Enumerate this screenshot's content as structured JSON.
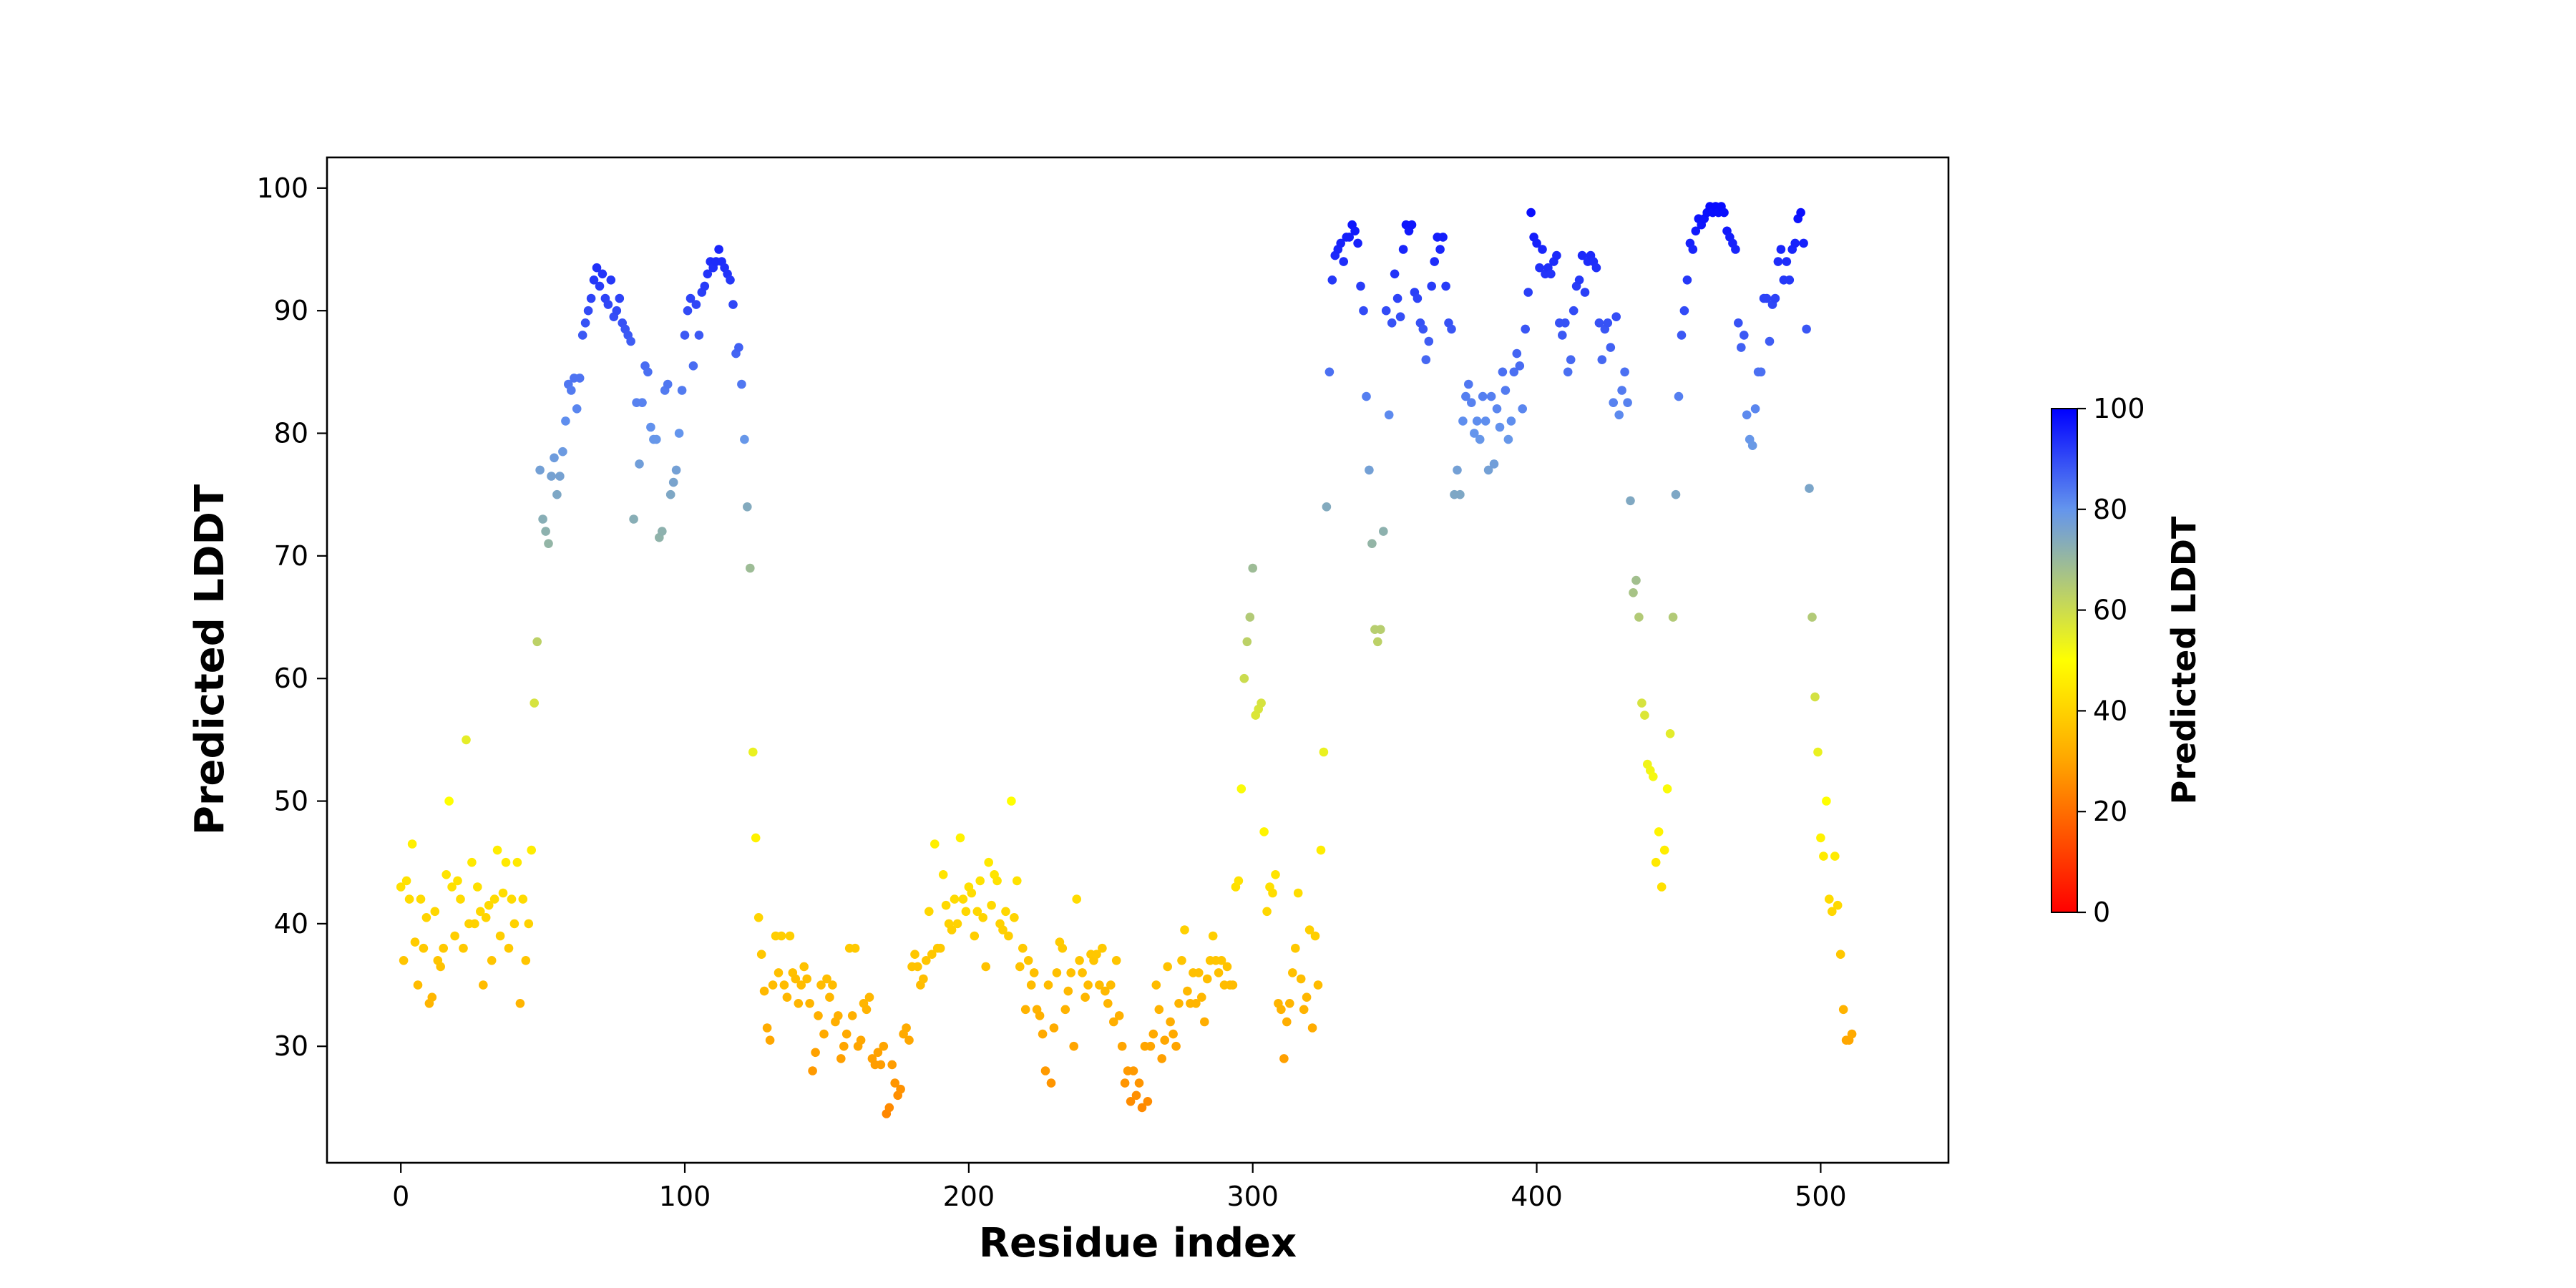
{
  "chart_data": {
    "type": "scatter",
    "xlabel": "Residue index",
    "ylabel": "Predicted LDDT",
    "x_ticks": [
      0,
      100,
      200,
      300,
      400,
      500
    ],
    "y_ticks": [
      30,
      40,
      50,
      60,
      70,
      80,
      90,
      100
    ],
    "xlim": [
      -26,
      545
    ],
    "ylim": [
      20.5,
      102.5
    ],
    "grid": false,
    "colorbar": {
      "label": "Predicted LDDT",
      "range": [
        0,
        100
      ],
      "ticks": [
        0,
        20,
        40,
        60,
        80,
        100
      ],
      "colors": [
        "#ff0000",
        "#ffa500",
        "#ffff00",
        "#6495ed",
        "#0000ff"
      ],
      "stops": [
        0,
        0.3,
        0.5,
        0.8,
        1.0
      ]
    },
    "y": [
      43,
      37,
      43.5,
      42,
      46.5,
      38.5,
      35,
      42,
      38,
      40.5,
      33.5,
      34,
      41,
      37,
      36.5,
      38,
      44,
      50,
      43,
      39,
      43.5,
      42,
      38,
      55,
      40,
      45,
      40,
      43,
      41,
      35,
      40.5,
      41.5,
      37,
      42,
      46,
      39,
      42.5,
      45,
      38,
      42,
      40,
      45,
      33.5,
      42,
      37,
      40,
      46,
      58,
      63,
      77,
      73,
      72,
      71,
      76.5,
      78,
      75,
      76.5,
      78.5,
      81,
      84,
      83.5,
      84.5,
      82,
      84.5,
      88,
      89,
      90,
      91,
      92.5,
      93.5,
      92,
      93,
      91,
      90.5,
      92.5,
      89.5,
      90,
      91,
      89,
      88.5,
      88,
      87.5,
      73,
      82.5,
      77.5,
      82.5,
      85.5,
      85,
      80.5,
      79.5,
      79.5,
      71.5,
      72,
      83.5,
      84,
      75,
      76,
      77,
      80,
      83.5,
      88,
      90,
      91,
      85.5,
      90.5,
      88,
      91.5,
      92,
      93,
      94,
      93.5,
      94,
      95,
      94,
      93.5,
      93,
      92.5,
      90.5,
      86.5,
      87,
      84,
      79.5,
      74,
      69,
      54,
      47,
      40.5,
      37.5,
      34.5,
      31.5,
      30.5,
      35,
      39,
      36,
      39,
      35,
      34,
      39,
      36,
      35.5,
      33.5,
      35,
      36.5,
      35.5,
      33.5,
      28,
      29.5,
      32.5,
      35,
      31,
      35.5,
      34,
      35,
      32,
      32.5,
      29,
      30,
      31,
      38,
      32.5,
      38,
      30,
      30.5,
      33.5,
      33,
      34,
      29,
      28.5,
      29.5,
      28.5,
      30,
      24.5,
      25,
      28.5,
      27,
      26,
      26.5,
      31,
      31.5,
      30.5,
      36.5,
      37.5,
      36.5,
      35,
      35.5,
      37,
      41,
      37.5,
      46.5,
      38,
      38,
      44,
      41.5,
      40,
      39.5,
      42,
      40,
      47,
      42,
      41,
      43,
      42.5,
      39,
      41,
      43.5,
      40.5,
      36.5,
      45,
      41.5,
      44,
      43.5,
      40,
      39.5,
      41,
      39,
      50,
      40.5,
      43.5,
      36.5,
      38,
      33,
      37,
      35,
      36,
      33,
      32.5,
      31,
      28,
      35,
      27,
      31.5,
      36,
      38.5,
      38,
      33,
      34.5,
      36,
      30,
      42,
      37,
      36,
      34,
      35,
      37.5,
      37,
      37.5,
      35,
      38,
      34.5,
      33.5,
      35,
      32,
      37,
      32.5,
      30,
      27,
      28,
      25.5,
      28,
      26,
      27,
      25,
      30,
      25.5,
      30,
      31,
      35,
      33,
      29,
      30.5,
      36.5,
      32,
      31,
      30,
      33.5,
      37,
      39.5,
      34.5,
      33.5,
      36,
      33.5,
      36,
      34,
      32,
      35.5,
      37,
      39,
      37,
      36,
      37,
      35,
      36.5,
      35,
      35,
      43,
      43.5,
      51,
      60,
      63,
      65,
      69,
      57,
      57.5,
      58,
      47.5,
      41,
      43,
      42.5,
      44,
      33.5,
      33,
      29,
      32,
      33.5,
      36,
      38,
      42.5,
      35.5,
      33,
      34,
      39.5,
      31.5,
      39,
      35,
      46,
      54,
      74,
      85,
      92.5,
      94.5,
      95,
      95.5,
      94,
      96,
      96,
      97,
      96.5,
      95.5,
      92,
      90,
      83,
      77,
      71,
      64,
      63,
      64,
      72,
      90,
      81.5,
      89,
      93,
      91,
      89.5,
      95,
      97,
      96.5,
      97,
      91.5,
      91,
      89,
      88.5,
      86,
      87.5,
      92,
      94,
      96,
      95,
      96,
      92,
      89,
      88.5,
      75,
      77,
      75,
      81,
      83,
      84,
      82.5,
      80,
      81,
      79.5,
      83,
      81,
      77,
      83,
      77.5,
      82,
      80.5,
      85,
      83.5,
      79.5,
      81,
      85,
      86.5,
      85.5,
      82,
      88.5,
      91.5,
      98,
      96,
      95.5,
      93.5,
      95,
      93,
      93.5,
      93,
      94,
      94.5,
      89,
      88,
      89,
      85,
      86,
      90,
      92,
      92.5,
      94.5,
      91.5,
      94,
      94.5,
      94,
      93.5,
      89,
      86,
      88.5,
      89,
      87,
      82.5,
      89.5,
      81.5,
      83.5,
      85,
      82.5,
      74.5,
      67,
      68,
      65,
      58,
      57,
      53,
      52.5,
      52,
      45,
      47.5,
      43,
      46,
      51,
      55.5,
      65,
      75,
      83,
      88,
      90,
      92.5,
      95.5,
      95,
      96.5,
      97.5,
      97,
      97.5,
      98,
      98.5,
      98,
      98.5,
      98,
      98.5,
      98,
      96.5,
      96,
      95.5,
      95,
      89,
      87,
      88,
      81.5,
      79.5,
      79,
      82,
      85,
      85,
      91,
      91,
      87.5,
      90.5,
      91,
      94,
      95,
      92.5,
      94,
      92.5,
      95,
      95.5,
      97.5,
      98,
      95.5,
      88.5,
      75.5,
      65,
      58.5,
      54,
      47,
      45.5,
      50,
      42,
      41,
      45.5,
      41.5,
      37.5,
      33,
      30.5,
      30.5,
      31
    ]
  }
}
